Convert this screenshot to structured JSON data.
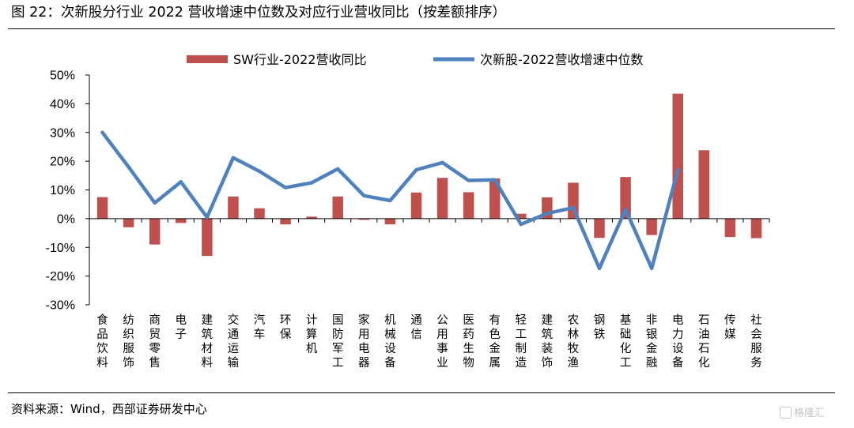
{
  "title": "图 22：次新股分行业 2022 营收增速中位数及对应行业营收同比（按差额排序）",
  "source": "资料来源：Wind，西部证券研发中心",
  "watermark": "格隆汇",
  "colors": {
    "bar": "#C0504D",
    "line": "#4F81BD"
  },
  "chart_data": {
    "type": "bar",
    "categories": [
      "食品饮料",
      "纺织服饰",
      "商贸零售",
      "电子",
      "建筑材料",
      "交通运输",
      "汽车",
      "环保",
      "计算机",
      "国防军工",
      "家用电器",
      "机械设备",
      "通信",
      "公用事业",
      "医药生物",
      "有色金属",
      "轻工制造",
      "建筑装饰",
      "农林牧渔",
      "钢铁",
      "基础化工",
      "非银金融",
      "电力设备",
      "石油石化",
      "传媒",
      "社会服务"
    ],
    "series": [
      {
        "name": "SW行业-2022营收同比",
        "type": "bar",
        "values": [
          7.5,
          -3.0,
          -9.0,
          -1.5,
          -13.0,
          7.7,
          3.6,
          -2.0,
          0.7,
          7.7,
          -0.4,
          -2.0,
          9.1,
          14.2,
          9.2,
          14.0,
          1.7,
          7.4,
          12.5,
          -6.7,
          14.5,
          -5.7,
          43.5,
          23.8,
          -6.4,
          -6.8
        ]
      },
      {
        "name": "次新股-2022营收增速中位数",
        "type": "line",
        "values": [
          30.0,
          18.0,
          5.5,
          12.8,
          0.5,
          21.2,
          16.5,
          10.8,
          12.5,
          17.3,
          8.0,
          6.3,
          17.0,
          19.5,
          13.3,
          13.5,
          -2.0,
          1.8,
          3.8,
          -17.3,
          3.2,
          -17.3,
          17.0,
          null,
          null,
          null
        ]
      }
    ],
    "y_ticks": [
      "50%",
      "40%",
      "30%",
      "20%",
      "10%",
      "0%",
      "-10%",
      "-20%",
      "-30%"
    ],
    "ylim": [
      -30,
      50
    ],
    "legend_position": "top"
  }
}
